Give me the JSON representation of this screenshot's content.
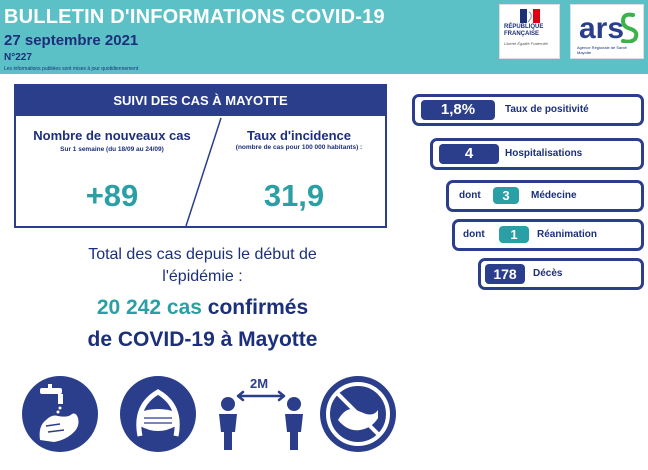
{
  "header": {
    "title": "BULLETIN D'INFORMATIONS COVID-19",
    "date": "27 septembre 2021",
    "number": "N°227",
    "note": "Les informations publiées sont mises à jour quotidiennement",
    "logo_rf_text": "RÉPUBLIQUE FRANÇAISE",
    "logo_rf_motto": "Liberté Égalité Fraternité",
    "logo_ars_text": "ars",
    "logo_ars_sub": "Agence Régionale de Santé Mayotte"
  },
  "cases": {
    "title": "SUIVI DES CAS À MAYOTTE",
    "new_cases": {
      "label": "Nombre de nouveaux cas",
      "sub": "Sur 1 semaine (du 18/09 au 24/09)",
      "value": "+89"
    },
    "incidence": {
      "label": "Taux d'incidence",
      "sub": "(nombre de cas pour 100 000 habitants) :",
      "value": "31,9"
    }
  },
  "total": {
    "line1": "Total des cas depuis le début de",
    "line2": "l'épidémie :",
    "count": "20 242 cas",
    "confirmed": "confirmés",
    "line4": "de COVID-19 à Mayotte"
  },
  "indicators": [
    {
      "value": "1,8%",
      "label": "Taux de positivité"
    },
    {
      "value": "4",
      "label": "Hospitalisations"
    },
    {
      "prefix": "dont",
      "value": "3",
      "label": "Médecine"
    },
    {
      "prefix": "dont",
      "value": "1",
      "label": "Réanimation"
    },
    {
      "value": "178",
      "label": "Décès"
    }
  ],
  "icons": {
    "distance_label": "2M"
  },
  "colors": {
    "navy": "#2b3e8c",
    "teal": "#2a9fa5",
    "header_bg": "#5cc1c6"
  }
}
